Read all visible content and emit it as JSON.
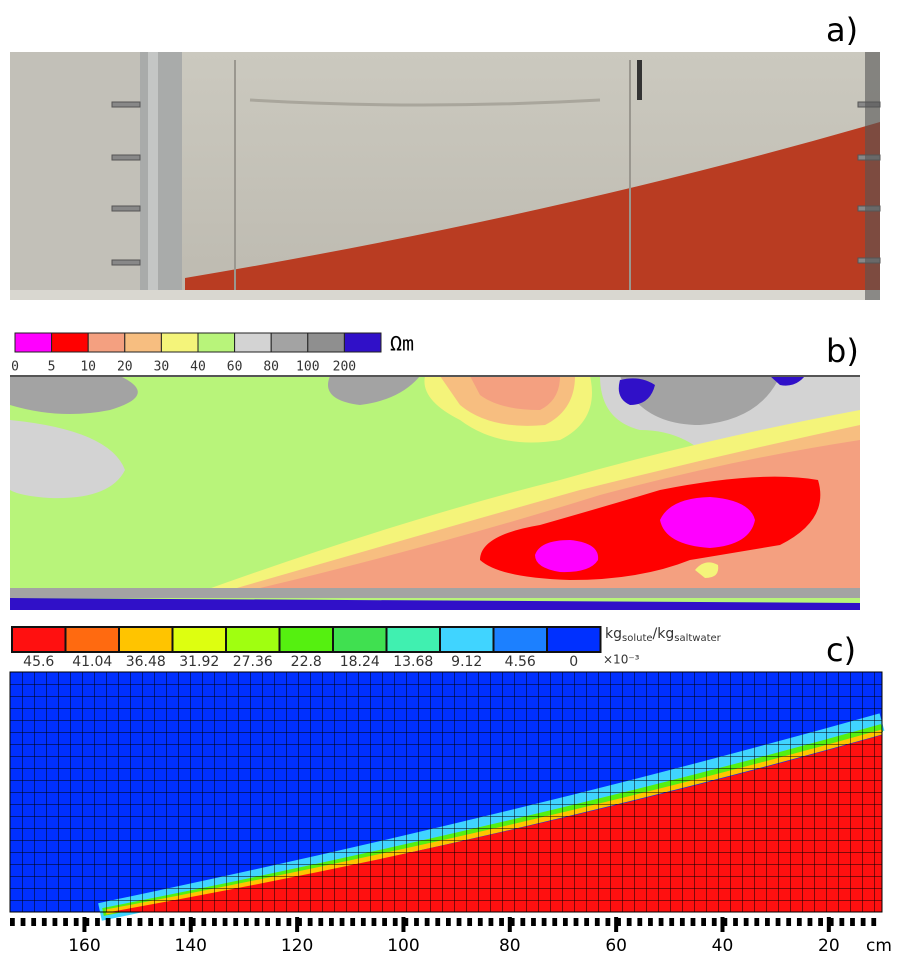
{
  "panels": [
    {
      "label": "a)"
    },
    {
      "label": "b)",
      "colorbar": {
        "bounds": [
          "0",
          "5",
          "10",
          "20",
          "30",
          "40",
          "60",
          "80",
          "100",
          "200"
        ],
        "colors": [
          "#ff00ff",
          "#ff0000",
          "#f4a080",
          "#f7be80",
          "#f4f47a",
          "#b8f47a",
          "#d3d3d3",
          "#a3a3a3",
          "#8f8f8f",
          "#3010c8"
        ],
        "unit": "Ωm"
      }
    },
    {
      "label": "c)",
      "colorbar": {
        "labels": [
          "45.6",
          "41.04",
          "36.48",
          "31.92",
          "27.36",
          "22.8",
          "18.24",
          "13.68",
          "9.12",
          "4.56",
          "0"
        ],
        "colors": [
          "#ff1010",
          "#ff6a10",
          "#ffc400",
          "#ddff10",
          "#a0ff10",
          "#55f010",
          "#40e050",
          "#40f0b0",
          "#40d4ff",
          "#1c80ff",
          "#0030ff"
        ],
        "unit_a": "kg",
        "unit_a_sub": "solute",
        "unit_b": "/kg",
        "unit_b_sub": "saltwater",
        "multiplier": "×10⁻³"
      }
    }
  ],
  "axis": {
    "xlim": [
      174,
      10
    ],
    "xticks": [
      160,
      140,
      120,
      100,
      80,
      60,
      40,
      20
    ],
    "unit": "cm"
  }
}
